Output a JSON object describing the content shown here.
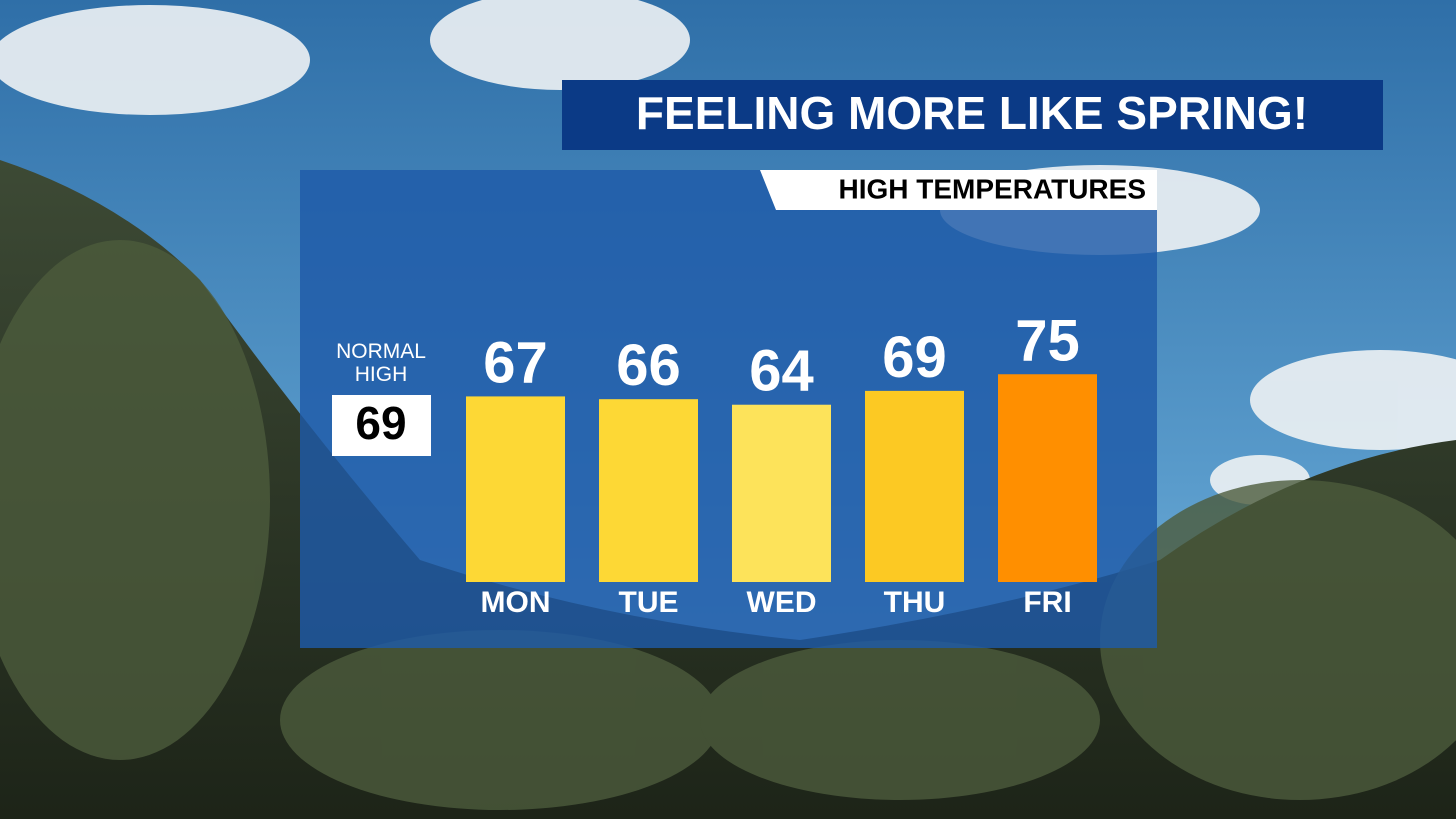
{
  "chart_data": {
    "type": "bar",
    "title": "FEELING MORE LIKE SPRING!",
    "subtitle": "HIGH TEMPERATURES",
    "categories": [
      "MON",
      "TUE",
      "WED",
      "THU",
      "FRI"
    ],
    "values": [
      67,
      66,
      64,
      69,
      75
    ],
    "colors": [
      "#fdd835",
      "#fdd835",
      "#fde35a",
      "#fcc923",
      "#ff8f00"
    ],
    "annotation": "NORMAL HIGH",
    "normal_high": 69
  }
}
